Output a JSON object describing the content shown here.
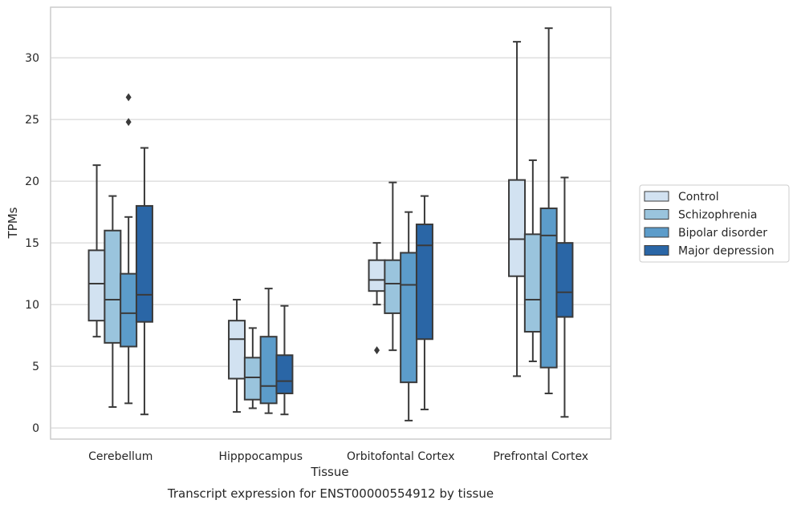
{
  "chart_data": {
    "type": "box",
    "categories": [
      "Cerebellum",
      "Hipppocampus",
      "Orbitofontal Cortex",
      "Prefrontal Cortex"
    ],
    "xlabel": "Tissue",
    "ylabel": "TPMs",
    "caption": "Transcript expression for ENST00000554912 by tissue",
    "ylim": [
      -0.9,
      34.1
    ],
    "yticks": [
      0,
      5,
      10,
      15,
      20,
      25,
      30
    ],
    "grid": "horizontal",
    "legend_position": "right",
    "series": [
      {
        "name": "Control",
        "color": "#d2e2f1",
        "boxes": [
          {
            "whisker_low": 7.4,
            "q1": 8.7,
            "median": 11.7,
            "q3": 14.4,
            "whisker_high": 21.3,
            "outliers": []
          },
          {
            "whisker_low": 1.3,
            "q1": 4.0,
            "median": 7.2,
            "q3": 8.7,
            "whisker_high": 10.4,
            "outliers": []
          },
          {
            "whisker_low": 10.0,
            "q1": 11.1,
            "median": 12.0,
            "q3": 13.6,
            "whisker_high": 15.0,
            "outliers": [
              6.3
            ]
          },
          {
            "whisker_low": 4.2,
            "q1": 12.3,
            "median": 15.3,
            "q3": 20.1,
            "whisker_high": 31.3,
            "outliers": []
          }
        ]
      },
      {
        "name": "Schizophrenia",
        "color": "#9ac4dd",
        "boxes": [
          {
            "whisker_low": 1.7,
            "q1": 6.9,
            "median": 10.4,
            "q3": 16.0,
            "whisker_high": 18.8,
            "outliers": []
          },
          {
            "whisker_low": 1.6,
            "q1": 2.3,
            "median": 4.1,
            "q3": 5.7,
            "whisker_high": 8.1,
            "outliers": []
          },
          {
            "whisker_low": 6.3,
            "q1": 9.3,
            "median": 11.7,
            "q3": 13.6,
            "whisker_high": 19.9,
            "outliers": []
          },
          {
            "whisker_low": 5.4,
            "q1": 7.8,
            "median": 10.4,
            "q3": 15.7,
            "whisker_high": 21.7,
            "outliers": []
          }
        ]
      },
      {
        "name": "Bipolar disorder",
        "color": "#5c9cca",
        "boxes": [
          {
            "whisker_low": 2.0,
            "q1": 6.6,
            "median": 9.3,
            "q3": 12.5,
            "whisker_high": 17.1,
            "outliers": [
              24.8,
              26.8
            ]
          },
          {
            "whisker_low": 1.2,
            "q1": 2.0,
            "median": 3.4,
            "q3": 7.4,
            "whisker_high": 11.3,
            "outliers": []
          },
          {
            "whisker_low": 0.6,
            "q1": 3.7,
            "median": 11.6,
            "q3": 14.2,
            "whisker_high": 17.5,
            "outliers": []
          },
          {
            "whisker_low": 2.8,
            "q1": 4.9,
            "median": 15.6,
            "q3": 17.8,
            "whisker_high": 32.4,
            "outliers": []
          }
        ]
      },
      {
        "name": "Major depression",
        "color": "#2a66a6",
        "boxes": [
          {
            "whisker_low": 1.1,
            "q1": 8.6,
            "median": 10.8,
            "q3": 18.0,
            "whisker_high": 22.7,
            "outliers": []
          },
          {
            "whisker_low": 1.1,
            "q1": 2.8,
            "median": 3.8,
            "q3": 5.9,
            "whisker_high": 9.9,
            "outliers": []
          },
          {
            "whisker_low": 1.5,
            "q1": 7.2,
            "median": 14.8,
            "q3": 16.5,
            "whisker_high": 18.8,
            "outliers": []
          },
          {
            "whisker_low": 0.9,
            "q1": 9.0,
            "median": 11.0,
            "q3": 15.0,
            "whisker_high": 20.3,
            "outliers": []
          }
        ]
      }
    ]
  }
}
